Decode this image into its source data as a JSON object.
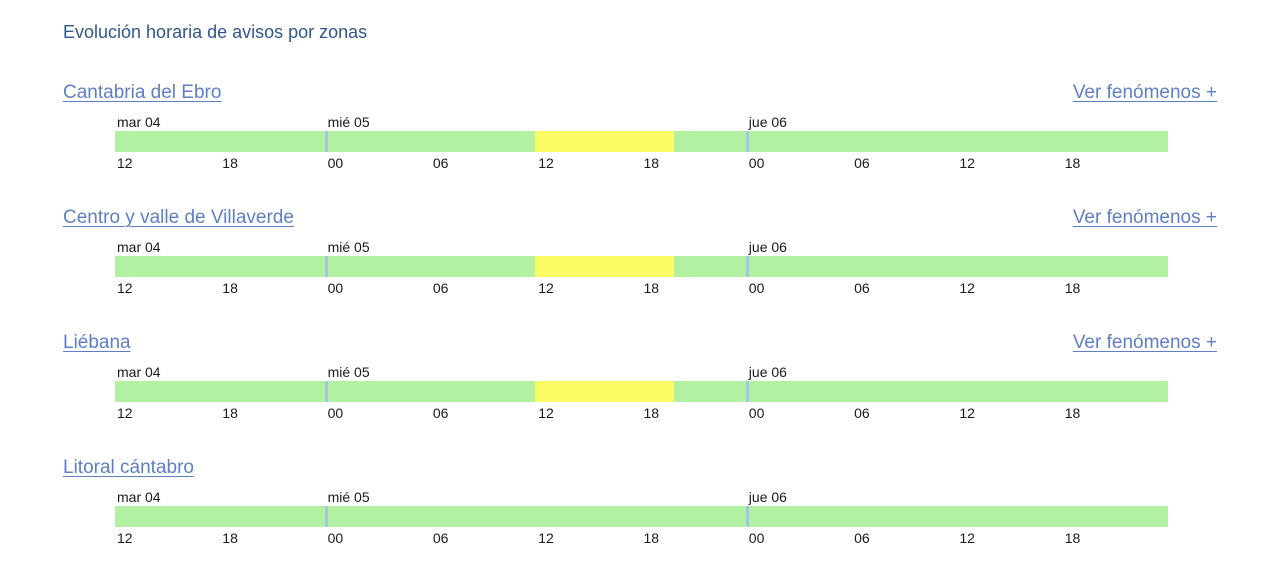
{
  "page": {
    "title": "Evolución horaria de avisos por zonas"
  },
  "actions": {
    "ver_fenomenos": "Ver fenómenos +"
  },
  "colors": {
    "title": "#30568c",
    "link": "#5f7ec4",
    "label": "#1a1a1a",
    "no_warning_green": "#b2f1a2",
    "yellow_warning": "#fbfb66",
    "day_tick_blue": "#a7c4e7"
  },
  "timeline": {
    "day_labels": [
      {
        "label": "mar 04",
        "left_pct": 0
      },
      {
        "label": "mié 05",
        "left_pct": 20
      },
      {
        "label": "jue 06",
        "left_pct": 60
      }
    ],
    "hour_labels": [
      {
        "label": "12",
        "left_pct": 0
      },
      {
        "label": "18",
        "left_pct": 10
      },
      {
        "label": "00",
        "left_pct": 20
      },
      {
        "label": "06",
        "left_pct": 30
      },
      {
        "label": "12",
        "left_pct": 40
      },
      {
        "label": "18",
        "left_pct": 50
      },
      {
        "label": "00",
        "left_pct": 60
      },
      {
        "label": "06",
        "left_pct": 70
      },
      {
        "label": "12",
        "left_pct": 80
      },
      {
        "label": "18",
        "left_pct": 90
      }
    ],
    "day_ticks_pct": [
      20,
      60
    ]
  },
  "zones": [
    {
      "name": "Cantabria del Ebro",
      "ver_fenomenos": true,
      "warning_segments": [
        {
          "level": "yellow",
          "left_pct": 39.9,
          "width_pct": 13.2,
          "starts_at": "mié 05 12:00",
          "ends_at": "mié 05 20:00"
        }
      ]
    },
    {
      "name": "Centro y valle de Villaverde",
      "ver_fenomenos": true,
      "warning_segments": [
        {
          "level": "yellow",
          "left_pct": 39.9,
          "width_pct": 13.2,
          "starts_at": "mié 05 12:00",
          "ends_at": "mié 05 20:00"
        }
      ]
    },
    {
      "name": "Liébana",
      "ver_fenomenos": true,
      "warning_segments": [
        {
          "level": "yellow",
          "left_pct": 39.9,
          "width_pct": 13.2,
          "starts_at": "mié 05 12:00",
          "ends_at": "mié 05 20:00"
        }
      ]
    },
    {
      "name": "Litoral cántabro",
      "ver_fenomenos": false,
      "warning_segments": []
    }
  ]
}
